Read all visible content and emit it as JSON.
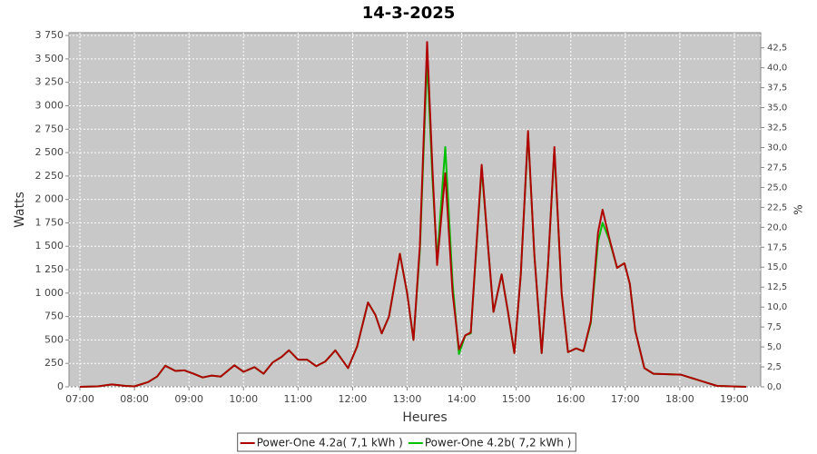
{
  "chart_data": {
    "type": "line",
    "title": "14-3-2025",
    "x_label": "Heures",
    "y_label": "Watts",
    "y2_label": "%",
    "x": [
      "07:00",
      "07:20",
      "07:35",
      "07:50",
      "08:00",
      "08:15",
      "08:25",
      "08:34",
      "08:45",
      "08:55",
      "09:05",
      "09:15",
      "09:25",
      "09:35",
      "09:50",
      "10:00",
      "10:12",
      "10:22",
      "10:32",
      "10:42",
      "10:50",
      "11:00",
      "11:10",
      "11:20",
      "11:30",
      "11:41",
      "11:55",
      "12:05",
      "12:17",
      "12:25",
      "12:32",
      "12:40",
      "12:52",
      "13:00",
      "13:07",
      "13:14",
      "13:22",
      "13:28",
      "13:33",
      "13:42",
      "13:50",
      "13:57",
      "14:04",
      "14:10",
      "14:22",
      "14:29",
      "14:35",
      "14:44",
      "14:51",
      "14:58",
      "15:05",
      "15:13",
      "15:20",
      "15:28",
      "15:35",
      "15:42",
      "15:50",
      "15:57",
      "16:06",
      "16:14",
      "16:22",
      "16:30",
      "16:35",
      "16:42",
      "16:51",
      "16:59",
      "17:05",
      "17:11",
      "17:21",
      "17:31",
      "18:01",
      "18:21",
      "18:41",
      "19:13"
    ],
    "series": [
      {
        "name": "Power-One 4.2a( 7,1 kWh )",
        "color": "#b00000",
        "values": [
          0,
          5,
          25,
          10,
          5,
          50,
          110,
          225,
          170,
          175,
          140,
          100,
          120,
          110,
          230,
          160,
          210,
          140,
          260,
          320,
          390,
          290,
          290,
          220,
          270,
          390,
          200,
          430,
          900,
          770,
          570,
          750,
          1420,
          1000,
          500,
          1500,
          3680,
          2300,
          1300,
          2280,
          1000,
          400,
          550,
          580,
          2370,
          1500,
          800,
          1200,
          800,
          360,
          1200,
          2730,
          1400,
          360,
          1300,
          2560,
          1000,
          370,
          410,
          380,
          700,
          1650,
          1890,
          1600,
          1270,
          1320,
          1100,
          600,
          200,
          140,
          130,
          70,
          10,
          0
        ]
      },
      {
        "name": "Power-One 4.2b( 7,2 kWh )",
        "color": "#00c000",
        "values": [
          0,
          5,
          25,
          10,
          5,
          50,
          110,
          225,
          170,
          175,
          140,
          100,
          120,
          110,
          230,
          160,
          210,
          140,
          260,
          320,
          390,
          290,
          290,
          220,
          270,
          390,
          200,
          430,
          900,
          770,
          570,
          750,
          1420,
          1000,
          500,
          1450,
          3500,
          2200,
          1350,
          2560,
          1100,
          350,
          550,
          570,
          2330,
          1500,
          800,
          1200,
          800,
          360,
          1200,
          2700,
          1400,
          360,
          1300,
          2530,
          1000,
          370,
          410,
          380,
          680,
          1550,
          1750,
          1580,
          1270,
          1320,
          1100,
          600,
          200,
          140,
          130,
          70,
          10,
          0
        ]
      }
    ],
    "xlim": [
      "06:48",
      "19:29"
    ],
    "xticks": [
      "07:00",
      "08:00",
      "09:00",
      "10:00",
      "11:00",
      "12:00",
      "13:00",
      "14:00",
      "15:00",
      "16:00",
      "17:00",
      "18:00",
      "19:00"
    ],
    "ylim": [
      0,
      3780
    ],
    "yticks": [
      0,
      250,
      500,
      750,
      {
        "value": 1000,
        "label": "1 000"
      },
      {
        "value": 1250,
        "label": "1 250"
      },
      {
        "value": 1500,
        "label": "1 500"
      },
      {
        "value": 1750,
        "label": "1 750"
      },
      {
        "value": 2000,
        "label": "2 000"
      },
      {
        "value": 2250,
        "label": "2 250"
      },
      {
        "value": 2500,
        "label": "2 500"
      },
      {
        "value": 2750,
        "label": "2 750"
      },
      {
        "value": 3000,
        "label": "3 000"
      },
      {
        "value": 3250,
        "label": "3 250"
      },
      {
        "value": 3500,
        "label": "3 500"
      },
      {
        "value": 3750,
        "label": "3 750"
      }
    ],
    "y2lim": [
      0,
      44.4
    ],
    "y2ticks": [
      {
        "value": 0,
        "label": "0,0"
      },
      {
        "value": 2.5,
        "label": "2,5"
      },
      {
        "value": 5,
        "label": "5,0"
      },
      {
        "value": 7.5,
        "label": "7,5"
      },
      {
        "value": 10,
        "label": "10,0"
      },
      {
        "value": 12.5,
        "label": "12,5"
      },
      {
        "value": 15,
        "label": "15,0"
      },
      {
        "value": 17.5,
        "label": "17,5"
      },
      {
        "value": 20,
        "label": "20,0"
      },
      {
        "value": 22.5,
        "label": "22,5"
      },
      {
        "value": 25,
        "label": "25,0"
      },
      {
        "value": 27.5,
        "label": "27,5"
      },
      {
        "value": 30,
        "label": "30,0"
      },
      {
        "value": 32.5,
        "label": "32,5"
      },
      {
        "value": 35,
        "label": "35,0"
      },
      {
        "value": 37.5,
        "label": "37,5"
      },
      {
        "value": 40,
        "label": "40,0"
      },
      {
        "value": 42.5,
        "label": "42,5"
      }
    ],
    "grid": true,
    "plot_background": "#c8c8c8",
    "legend": "bottom"
  }
}
